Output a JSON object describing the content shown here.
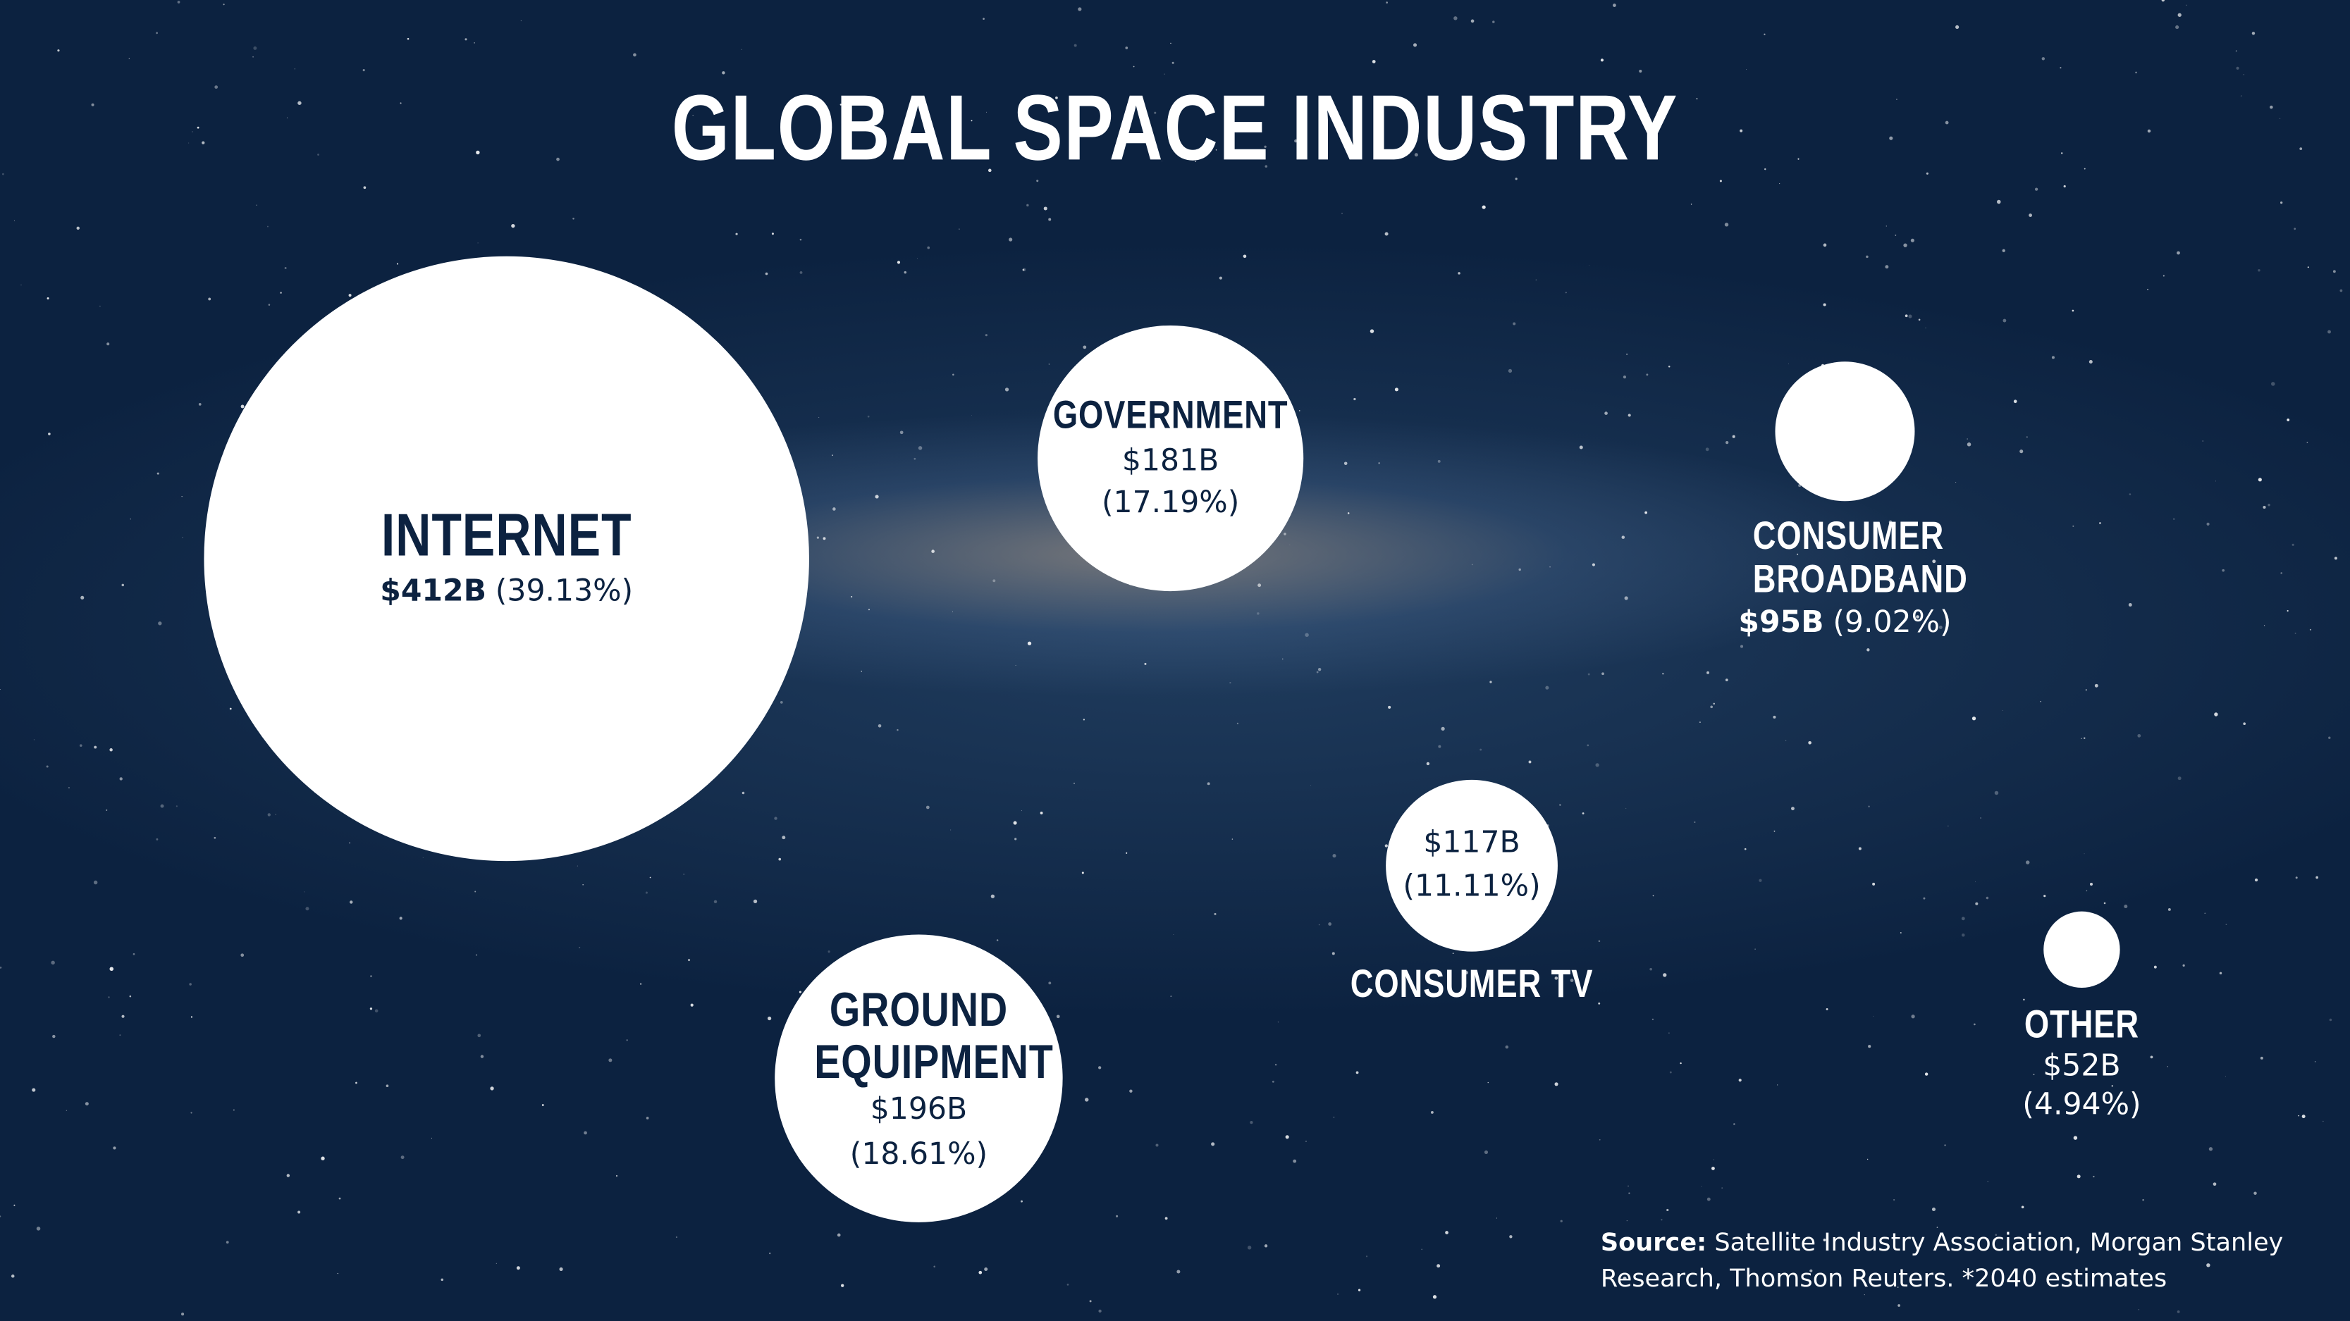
{
  "chart_data": {
    "type": "bubble",
    "title": "GLOBAL SPACE INDUSTRY",
    "categories": [
      "INTERNET",
      "GROUND EQUIPMENT",
      "GOVERNMENT",
      "CONSUMER TV",
      "CONSUMER BROADBAND",
      "OTHER"
    ],
    "values": [
      412,
      196,
      181,
      117,
      95,
      52
    ],
    "value_labels": [
      "$412B",
      "$196B",
      "$181B",
      "$117B",
      "$95B",
      "$52B"
    ],
    "percents": [
      39.13,
      18.61,
      17.19,
      11.11,
      9.02,
      4.94
    ],
    "percent_labels": [
      "(39.13%)",
      "(18.61%)",
      "(17.19%)",
      "(11.11%)",
      "(9.02%)",
      "(4.94%)"
    ],
    "color": "#ffffff",
    "source_label": "Source:",
    "source_text": "Satellite Industry Association, Morgan Stanley Research, Thomson Reuters. *2040 estimates"
  }
}
